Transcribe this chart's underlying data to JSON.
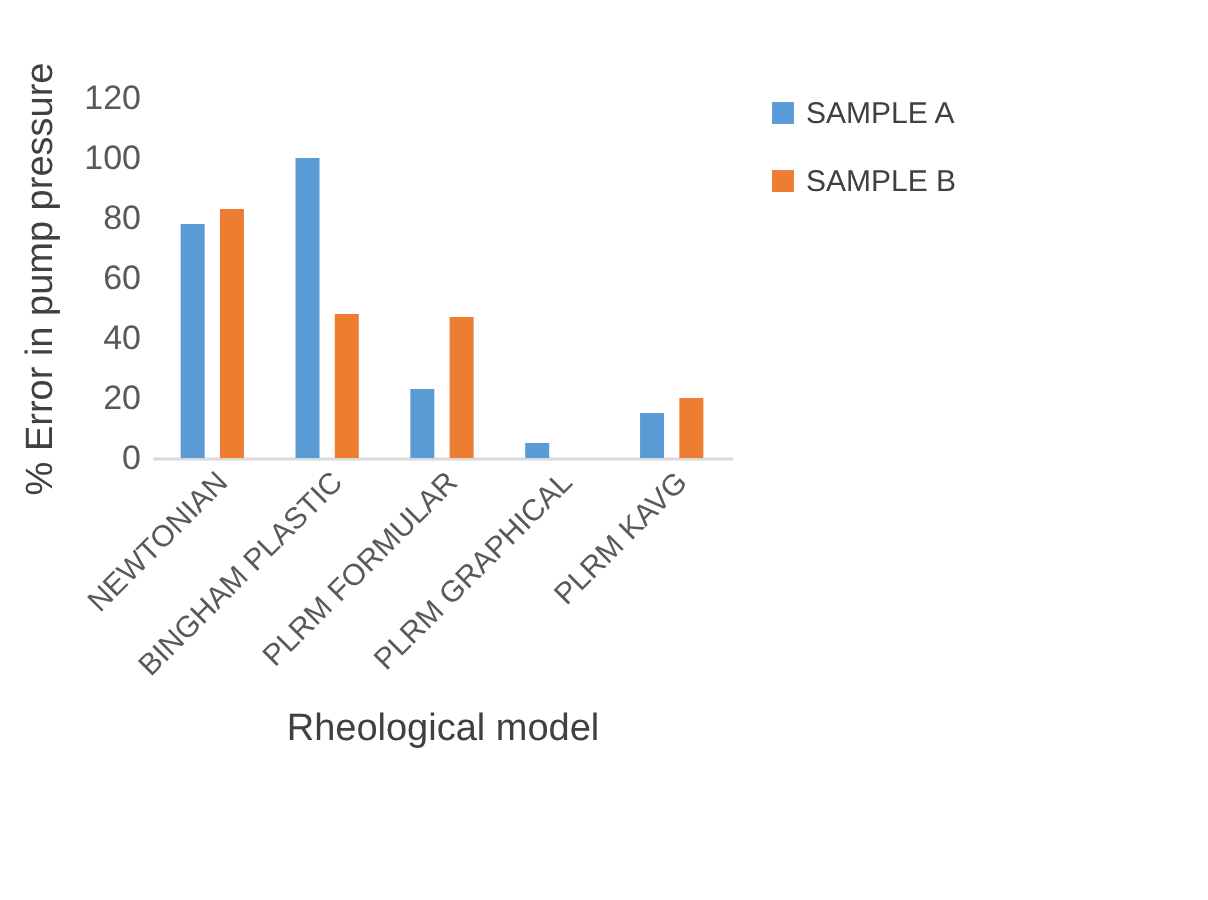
{
  "chart_data": {
    "type": "bar",
    "xlabel": "Rheological model",
    "ylabel": "% Error in pump pressure",
    "categories": [
      "NEWTONIAN",
      "BINGHAM PLASTIC",
      "PLRM FORMULAR",
      "PLRM GRAPHICAL",
      "PLRM KAVG"
    ],
    "series": [
      {
        "name": "SAMPLE A",
        "color": "#5b9bd5",
        "values": [
          78,
          100,
          23,
          5,
          15
        ]
      },
      {
        "name": "SAMPLE B",
        "color": "#ed7d31",
        "values": [
          83,
          48,
          47,
          0,
          20
        ]
      }
    ],
    "ylim": [
      0,
      120
    ],
    "yticks": [
      0,
      20,
      40,
      60,
      80,
      100,
      120
    ],
    "grid": false,
    "legend": "right"
  }
}
